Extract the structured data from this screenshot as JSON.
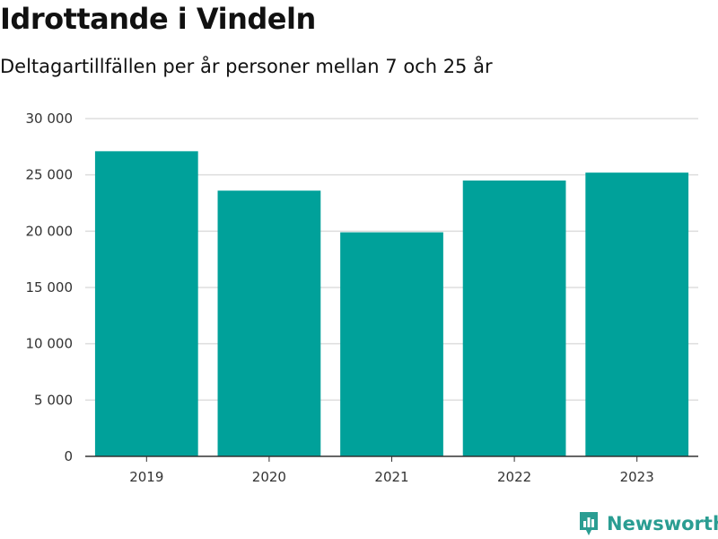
{
  "chart_data": {
    "type": "bar",
    "title": "Idrottande i Vindeln",
    "subtitle": "Deltagartillfällen per år personer mellan 7 och 25 år",
    "categories": [
      "2019",
      "2020",
      "2021",
      "2022",
      "2023"
    ],
    "values": [
      27100,
      23600,
      19900,
      24500,
      25200
    ],
    "ylim": [
      0,
      30000
    ],
    "yticks": [
      0,
      5000,
      10000,
      15000,
      20000,
      25000,
      30000
    ],
    "ytick_labels": [
      "0",
      "5 000",
      "10 000",
      "15 000",
      "20 000",
      "25 000",
      "30 000"
    ],
    "grid": true,
    "bar_color": "#00a19a",
    "grid_color": "#dddddd",
    "axis_color": "#333333"
  },
  "brand": {
    "name": "Newsworthy",
    "color": "#2a9d92",
    "icon": "bar-chart-speech-bubble-icon"
  }
}
